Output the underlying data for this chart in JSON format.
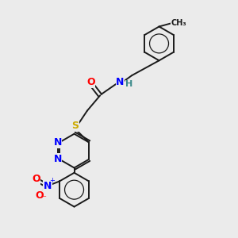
{
  "bg_color": "#ebebeb",
  "bond_color": "#1a1a1a",
  "atom_colors": {
    "N": "#0000ff",
    "O": "#ff0000",
    "S": "#ccaa00",
    "C": "#1a1a1a",
    "H": "#3a8a8a"
  },
  "font_size": 8,
  "lw": 1.4
}
